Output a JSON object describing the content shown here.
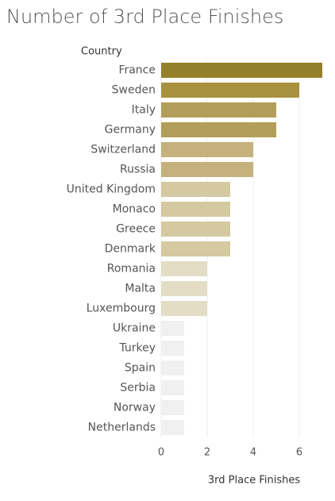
{
  "chart_data": {
    "type": "bar",
    "orientation": "horizontal",
    "title": "Number of 3rd Place Finishes",
    "category_label": "Country",
    "x_label": "3rd Place Finishes",
    "categories": [
      "France",
      "Sweden",
      "Italy",
      "Germany",
      "Switzerland",
      "Russia",
      "United Kingdom",
      "Monaco",
      "Greece",
      "Denmark",
      "Romania",
      "Malta",
      "Luxembourg",
      "Ukraine",
      "Turkey",
      "Spain",
      "Serbia",
      "Norway",
      "Netherlands"
    ],
    "values": [
      7,
      6,
      5,
      5,
      4,
      4,
      3,
      3,
      3,
      3,
      2,
      2,
      2,
      1,
      1,
      1,
      1,
      1,
      1
    ],
    "colors": [
      "#94802a",
      "#a8913f",
      "#b29e58",
      "#b29e58",
      "#c5b17c",
      "#c5b17c",
      "#d4c9a0",
      "#d4c9a0",
      "#d4c9a0",
      "#d4c9a0",
      "#e3ddc6",
      "#e3ddc6",
      "#e3ddc6",
      "#f0f0f0",
      "#f0f0f0",
      "#f0f0f0",
      "#f0f0f0",
      "#f0f0f0",
      "#f0f0f0"
    ],
    "xlim": [
      0,
      7.2
    ],
    "xticks": [
      0,
      2,
      4,
      6
    ],
    "grid": true
  }
}
